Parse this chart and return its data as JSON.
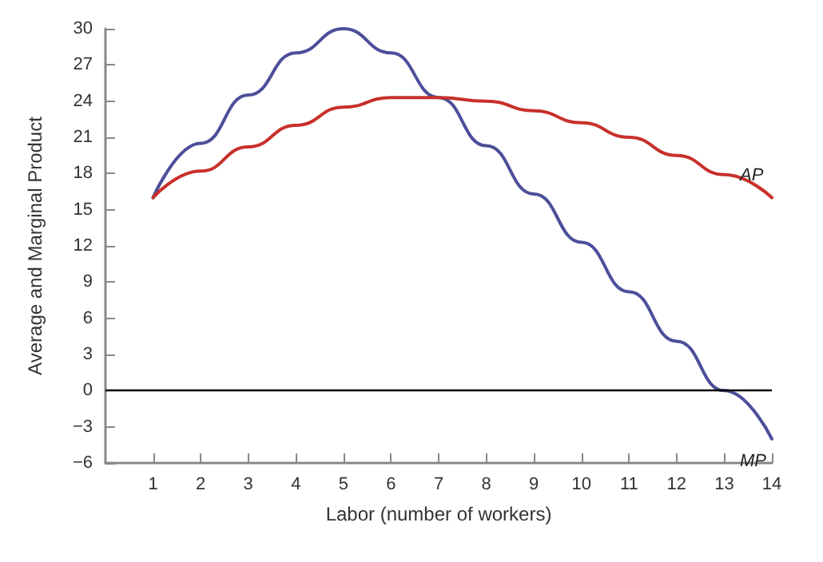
{
  "chart_data": {
    "type": "line",
    "xlabel": "Labor (number of workers)",
    "ylabel": "Average and Marginal Product",
    "x": [
      1,
      2,
      3,
      4,
      5,
      6,
      7,
      8,
      9,
      10,
      11,
      12,
      13,
      14
    ],
    "series": [
      {
        "name": "MP",
        "color": "#4b4f9a",
        "values": [
          16,
          20.5,
          24.5,
          28,
          30,
          28,
          24.3,
          20.3,
          16.3,
          12.3,
          8.2,
          4.1,
          0,
          -4
        ]
      },
      {
        "name": "AP",
        "color": "#c8302a",
        "values": [
          16,
          18.2,
          20.2,
          22,
          23.5,
          24.3,
          24.3,
          24,
          23.2,
          22.2,
          21,
          19.5,
          17.9,
          16
        ]
      }
    ],
    "xlim": [
      0,
      14
    ],
    "xticks": [
      1,
      2,
      3,
      4,
      5,
      6,
      7,
      8,
      9,
      10,
      11,
      12,
      13,
      14
    ],
    "ylim": [
      -6,
      30
    ],
    "yticks": [
      {
        "value": -6,
        "label": "−6"
      },
      {
        "value": -3,
        "label": "−3"
      },
      0,
      3,
      6,
      9,
      12,
      15,
      18,
      21,
      24,
      27,
      30
    ],
    "ref_lines": [
      {
        "axis": "y",
        "value": 0,
        "color": "#000000"
      }
    ],
    "grid": false,
    "legend": false,
    "marker": "none",
    "line_style": "solid"
  }
}
